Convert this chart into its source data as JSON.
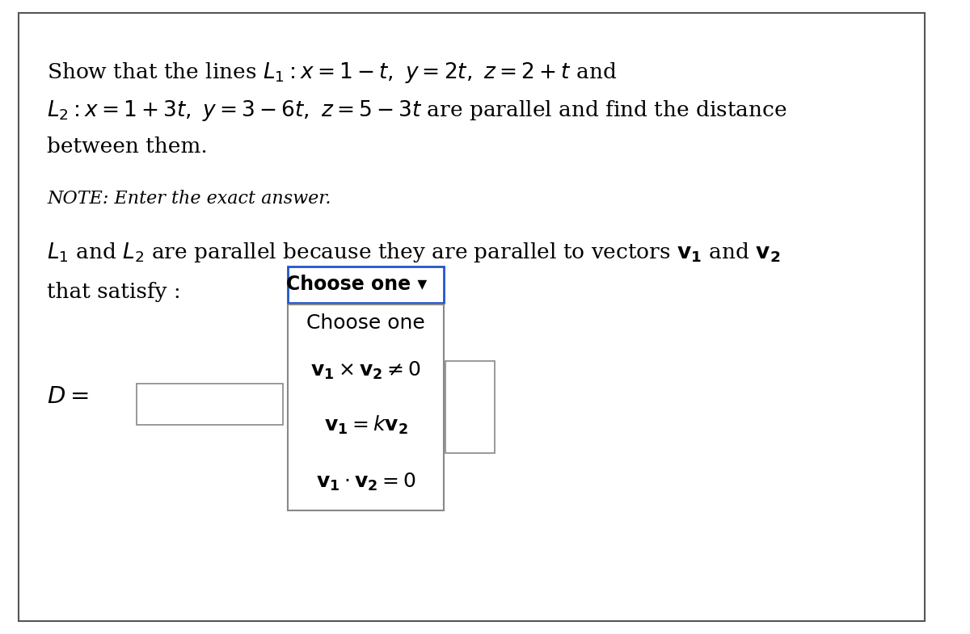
{
  "background_color": "#ffffff",
  "border_color": "#555555",
  "title_line1": "Show that the lines $L_1 : x = 1-t,\\ y = 2t,\\ z = 2+t$ and",
  "title_line2": "$L_2 : x = 1+3t,\\ y = 3-6t,\\ z = 5-3t$ are parallel and find the distance",
  "title_line3": "between them.",
  "note_text": "NOTE: Enter the exact answer.",
  "body_line1": "$L_1$ and $L_2$ are parallel because they are parallel to vectors $\\mathbf{v_1}$ and $\\mathbf{v_2}$",
  "body_line2": "that satisfy :",
  "choose_one_label": "Choose one ▾",
  "dropdown_items": [
    "Choose one",
    "$\\mathbf{v_1}\\times\\mathbf{v_2}\\neq 0$",
    "$\\mathbf{v_1} = k\\mathbf{v_2}$",
    "$\\mathbf{v_1}\\cdot\\mathbf{v_2}=0$"
  ],
  "d_label": "$D =$",
  "fig_width": 12.0,
  "fig_height": 7.85,
  "dpi": 100
}
